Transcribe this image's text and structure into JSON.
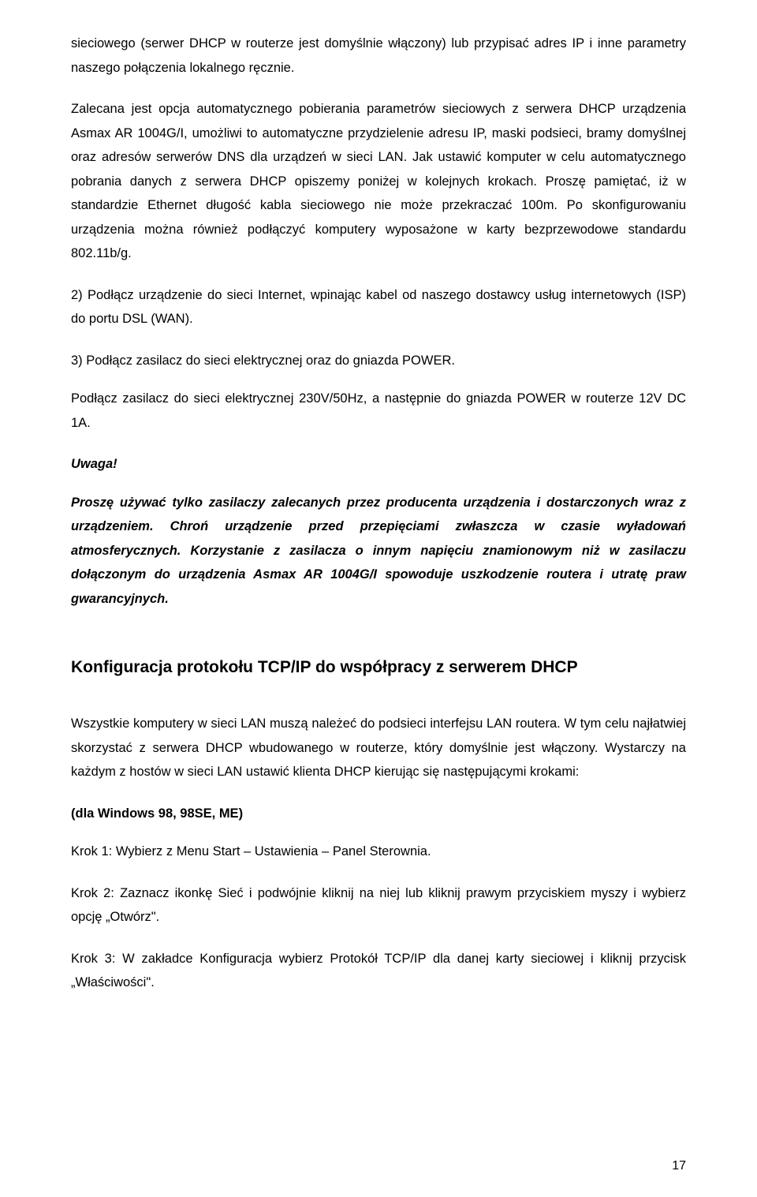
{
  "para1": "sieciowego (serwer DHCP w routerze jest domyślnie włączony) lub przypisać adres IP i inne parametry naszego połączenia lokalnego ręcznie.",
  "para2": "Zalecana jest opcja automatycznego pobierania parametrów sieciowych z serwera DHCP urządzenia Asmax AR 1004G/I, umożliwi to automatyczne przydzielenie adresu IP, maski podsieci, bramy domyślnej oraz adresów serwerów DNS dla urządzeń w sieci LAN. Jak ustawić komputer w celu automatycznego pobrania danych z serwera DHCP opiszemy poniżej w kolejnych krokach. Proszę pamiętać, iż w standardzie Ethernet długość kabla sieciowego nie może przekraczać 100m. Po skonfigurowaniu urządzenia można również podłączyć komputery wyposażone w karty bezprzewodowe standardu 802.11b/g.",
  "para3": "2) Podłącz urządzenie do sieci Internet, wpinając kabel od naszego dostawcy usług internetowych (ISP) do portu DSL (WAN).",
  "para4": "3) Podłącz zasilacz do sieci elektrycznej oraz do gniazda POWER.",
  "para5": "Podłącz zasilacz do sieci elektrycznej 230V/50Hz, a następnie do gniazda POWER w routerze 12V DC 1A.",
  "uwaga": "Uwaga!",
  "para6": "Proszę używać tylko zasilaczy zalecanych przez producenta urządzenia i dostarczonych wraz z urządzeniem. Chroń urządzenie przed przepięciami zwłaszcza w czasie wyładowań atmosferycznych. Korzystanie z zasilacza o innym napięciu znamionowym niż w zasilaczu dołączonym do urządzenia Asmax AR 1004G/I spowoduje uszkodzenie routera i utratę praw gwarancyjnych.",
  "heading": "Konfiguracja protokołu TCP/IP do współpracy z serwerem DHCP",
  "para7": "Wszystkie komputery w sieci LAN muszą należeć do podsieci interfejsu LAN routera. W tym celu najłatwiej skorzystać z serwera DHCP wbudowanego w routerze, który domyślnie jest włączony. Wystarczy na każdym z hostów w sieci LAN ustawić klienta DHCP kierując się następującymi krokami:",
  "winLabel": "(dla Windows 98, 98SE, ME)",
  "krok1": "Krok 1: Wybierz z Menu Start – Ustawienia – Panel Sterownia.",
  "krok2": "Krok 2: Zaznacz ikonkę Sieć i podwójnie kliknij na niej lub kliknij prawym przyciskiem myszy i wybierz opcję „Otwórz\".",
  "krok3": "Krok 3: W zakładce Konfiguracja wybierz Protokół TCP/IP dla danej karty sieciowej i kliknij przycisk „Właściwości\".",
  "pageNumber": "17"
}
